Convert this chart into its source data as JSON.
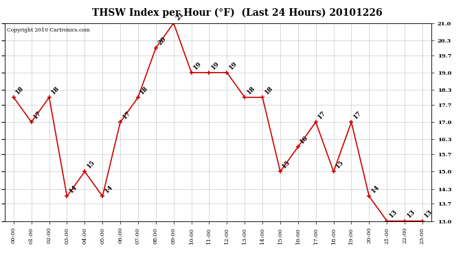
{
  "title": "THSW Index per Hour (°F)  (Last 24 Hours) 20101226",
  "copyright": "Copyright 2010 Cartronics.com",
  "hours": [
    "00:00",
    "01:00",
    "02:00",
    "03:00",
    "04:00",
    "05:00",
    "06:00",
    "07:00",
    "08:00",
    "09:00",
    "10:00",
    "11:00",
    "12:00",
    "13:00",
    "14:00",
    "15:00",
    "16:00",
    "17:00",
    "18:00",
    "19:00",
    "20:00",
    "21:00",
    "22:00",
    "23:00"
  ],
  "values": [
    18,
    17,
    18,
    14,
    15,
    14,
    17,
    18,
    20,
    21,
    19,
    19,
    19,
    18,
    18,
    15,
    16,
    17,
    15,
    17,
    14,
    13,
    13,
    13
  ],
  "ylim_min": 13.0,
  "ylim_max": 21.0,
  "yticks": [
    13.0,
    13.7,
    14.3,
    15.0,
    15.7,
    16.3,
    17.0,
    17.7,
    18.3,
    19.0,
    19.7,
    20.3,
    21.0
  ],
  "line_color": "#cc0000",
  "marker_color": "#cc0000",
  "bg_color": "#ffffff",
  "grid_color": "#bbbbbb",
  "title_fontsize": 10,
  "label_fontsize": 6.5,
  "tick_fontsize": 6,
  "copyright_fontsize": 5.5
}
